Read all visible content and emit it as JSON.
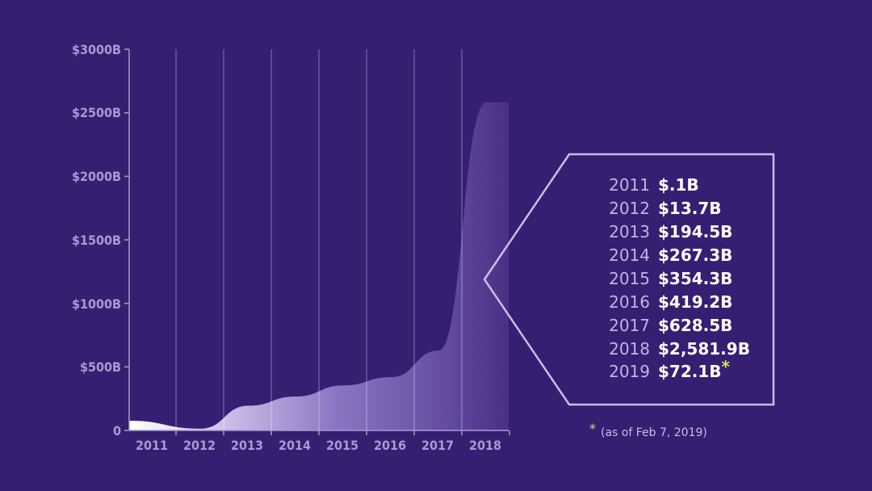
{
  "chart_data": {
    "type": "area",
    "x": [
      2011,
      2012,
      2013,
      2014,
      2015,
      2016,
      2017,
      2018
    ],
    "values": [
      0.1,
      13.7,
      194.5,
      267.3,
      354.3,
      419.2,
      628.5,
      2581.9
    ],
    "ylim": [
      0,
      3000
    ],
    "ytick_labels": [
      "0",
      "$500B",
      "$1000B",
      "$1500B",
      "$2000B",
      "$2500B",
      "$3000B"
    ],
    "xtick_labels": [
      "2011",
      "2012",
      "2013",
      "2014",
      "2015",
      "2016",
      "2017",
      "2018"
    ],
    "grid": "vertical lines at each year"
  },
  "callout": {
    "rows": [
      {
        "year": "2011",
        "value": "$.1B",
        "star": ""
      },
      {
        "year": "2012",
        "value": "$13.7B",
        "star": ""
      },
      {
        "year": "2013",
        "value": "$194.5B",
        "star": ""
      },
      {
        "year": "2014",
        "value": "$267.3B",
        "star": ""
      },
      {
        "year": "2015",
        "value": "$354.3B",
        "star": ""
      },
      {
        "year": "2016",
        "value": "$419.2B",
        "star": ""
      },
      {
        "year": "2017",
        "value": "$628.5B",
        "star": ""
      },
      {
        "year": "2018",
        "value": "$2,581.9B",
        "star": ""
      },
      {
        "year": "2019",
        "value": "$72.1B",
        "star": "*"
      }
    ]
  },
  "footnote": {
    "star": "*",
    "text": "(as of Feb 7, 2019)"
  },
  "colors": {
    "background": "#361e72",
    "axis": "#a99ad0",
    "area_light": "#ffffff",
    "area_dark": "#4a2f85",
    "callout_border": "#c9bde8",
    "footnote_star": "#d6e25a"
  }
}
